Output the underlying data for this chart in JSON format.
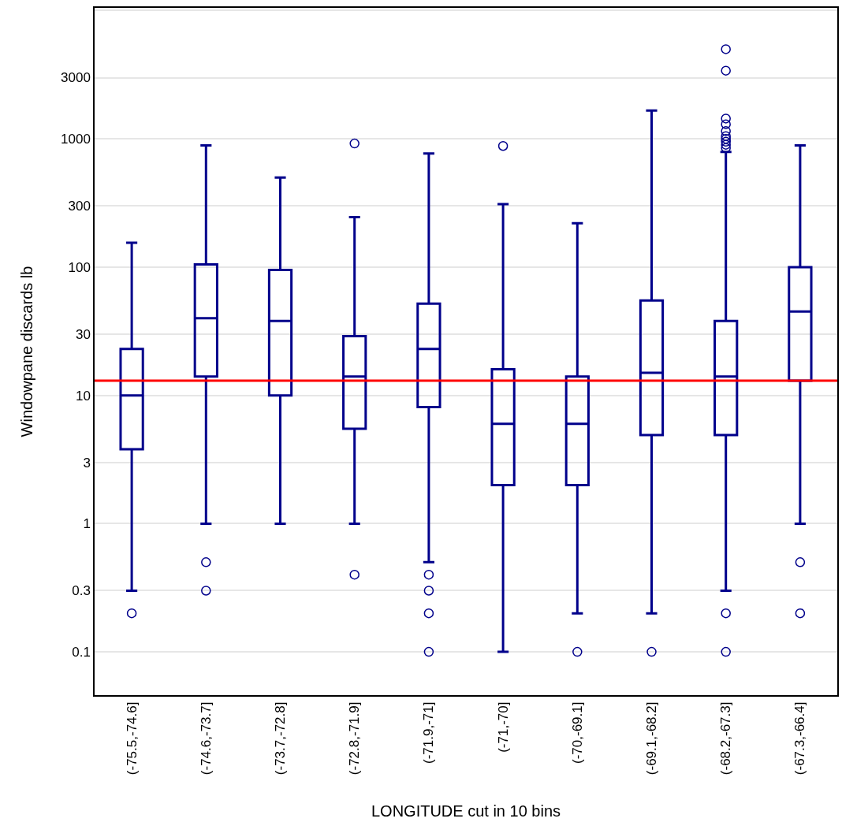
{
  "chart_data": {
    "type": "box",
    "xlabel": "LONGITUDE cut in 10 bins",
    "ylabel": "Windowpane discards lb",
    "categories": [
      "(-75.5,-74.6]",
      "(-74.6,-73.7]",
      "(-73.7,-72.8]",
      "(-72.8,-71.9]",
      "(-71.9,-71]",
      "(-71,-70]",
      "(-70,-69.1]",
      "(-69.1,-68.2]",
      "(-68.2,-67.3]",
      "(-67.3,-66.4]"
    ],
    "series": [
      {
        "color": "#00008b",
        "boxes": [
          {
            "low": 0.3,
            "q1": 3.8,
            "median": 10,
            "q3": 23,
            "high": 155,
            "outliers": [
              0.2
            ]
          },
          {
            "low": 1,
            "q1": 14,
            "median": 40,
            "q3": 105,
            "high": 890,
            "outliers": [
              0.5,
              0.3
            ]
          },
          {
            "low": 1,
            "q1": 10,
            "median": 38,
            "q3": 95,
            "high": 500
          },
          {
            "low": 1,
            "q1": 5.5,
            "median": 14,
            "q3": 29,
            "high": 245,
            "outliers": [
              920,
              0.4
            ]
          },
          {
            "low": 0.5,
            "q1": 8.1,
            "median": 23,
            "q3": 52,
            "high": 770,
            "outliers": [
              0.4,
              0.3,
              0.2,
              0.1
            ]
          },
          {
            "low": 0.1,
            "q1": 2,
            "median": 6,
            "q3": 16,
            "high": 310,
            "outliers": [
              880
            ]
          },
          {
            "low": 0.2,
            "q1": 2,
            "median": 6,
            "q3": 14,
            "high": 220,
            "outliers": [
              0.1
            ]
          },
          {
            "low": 0.2,
            "q1": 4.9,
            "median": 15,
            "q3": 55,
            "high": 1660,
            "outliers": [
              0.1
            ]
          },
          {
            "low": 0.3,
            "q1": 4.9,
            "median": 14,
            "q3": 38,
            "high": 790,
            "outliers": [
              5000,
              3400,
              1440,
              1300,
              1150,
              1050,
              1000,
              950,
              900,
              850,
              0.2,
              0.1
            ]
          },
          {
            "low": 1,
            "q1": 13,
            "median": 45,
            "q3": 100,
            "high": 890,
            "outliers": [
              0.5,
              0.2
            ]
          }
        ]
      }
    ],
    "ref_lines": [
      {
        "axis": "y",
        "value": 13,
        "color": "#ff0000"
      }
    ],
    "log": "y",
    "ylim": [
      0.046,
      10500
    ],
    "yticks": [
      0.1,
      0.3,
      1,
      3,
      10,
      30,
      100,
      300,
      1000,
      3000,
      {
        "value": 10000,
        "label": null
      }
    ],
    "grid": "y",
    "marker": "circle"
  }
}
